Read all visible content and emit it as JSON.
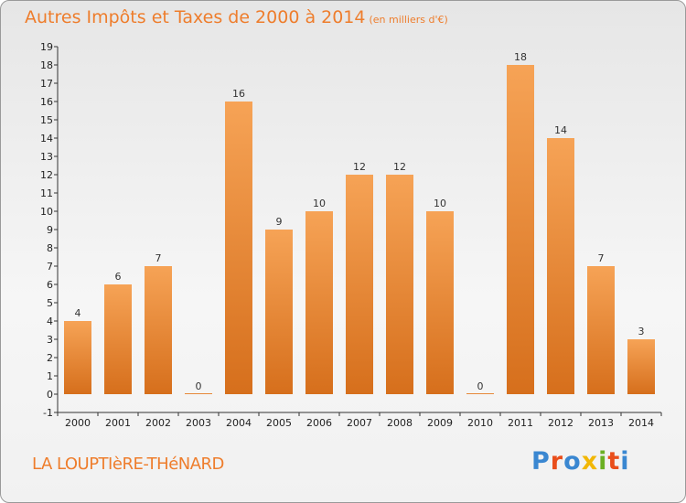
{
  "header": {
    "title": "Autres Impôts et Taxes de 2000 à 2014",
    "unit": "(en milliers d'€)"
  },
  "footer": {
    "town": "LA LOUPTIèRE-THéNARD",
    "logo": [
      "P",
      "r",
      "o",
      "x",
      "i",
      "t",
      "i"
    ]
  },
  "colors": {
    "bar_light": "#f6a356",
    "bar_dark": "#d66f1c",
    "title": "#ee7d2c",
    "logo": [
      "#3a87d1",
      "#e94e1b",
      "#3a87d1",
      "#f2b705",
      "#6ab023",
      "#e94e1b",
      "#3a87d1"
    ]
  },
  "chart_data": {
    "type": "bar",
    "title": "Autres Impôts et Taxes de 2000 à 2014",
    "categories": [
      "2000",
      "2001",
      "2002",
      "2003",
      "2004",
      "2005",
      "2006",
      "2007",
      "2008",
      "2009",
      "2010",
      "2011",
      "2012",
      "2013",
      "2014"
    ],
    "values": [
      4,
      6,
      7,
      0,
      16,
      9,
      10,
      12,
      12,
      10,
      0,
      18,
      14,
      7,
      3
    ],
    "y_ticks": [
      "-1",
      "0",
      "1",
      "2",
      "3",
      "4",
      "5",
      "6",
      "7",
      "8",
      "9",
      "10",
      "11",
      "12",
      "13",
      "14",
      "15",
      "16",
      "17",
      "18",
      "19"
    ],
    "ylim": [
      -1,
      19
    ],
    "grid": false,
    "xlabel": "",
    "ylabel": ""
  }
}
